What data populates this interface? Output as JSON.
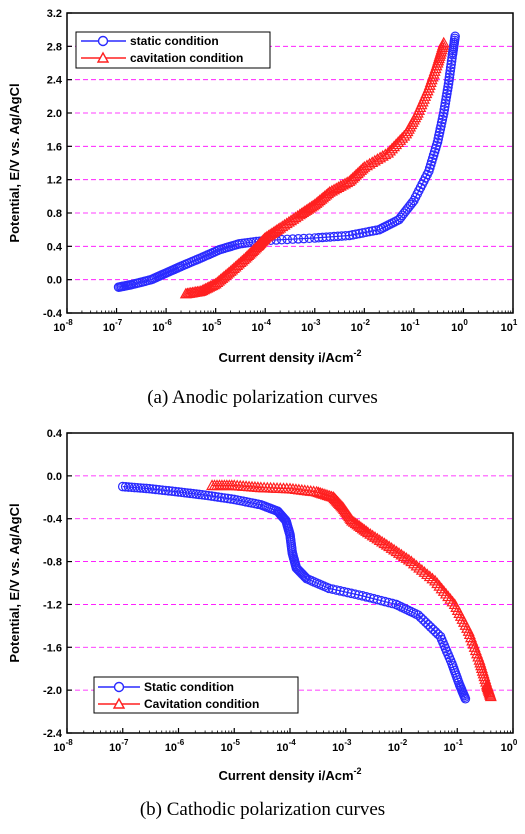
{
  "captions": {
    "a": "(a)  Anodic  polarization  curves",
    "b": "(b)  Cathodic  polarization  curves"
  },
  "colors": {
    "static": "#2a2aff",
    "cavitation": "#ff2020",
    "grid": "#ff00ff"
  },
  "chart_data": [
    {
      "type": "scatter",
      "xscale": "log",
      "xlim": [
        "1e-8",
        "1e1"
      ],
      "ylim": [
        -0.4,
        3.2
      ],
      "xlabel": "Current density i/Acm",
      "xlabel_sup": "-2",
      "ylabel": "Potential, E/V vs. Ag/AgCl",
      "x_ticks": [
        {
          "base": "10",
          "exp": "-8"
        },
        {
          "base": "10",
          "exp": "-7"
        },
        {
          "base": "10",
          "exp": "-6"
        },
        {
          "base": "10",
          "exp": "-5"
        },
        {
          "base": "10",
          "exp": "-4"
        },
        {
          "base": "10",
          "exp": "-3"
        },
        {
          "base": "10",
          "exp": "-2"
        },
        {
          "base": "10",
          "exp": "-1"
        },
        {
          "base": "10",
          "exp": "0"
        },
        {
          "base": "10",
          "exp": "1"
        }
      ],
      "y_ticks": [
        "-0.4",
        "0.0",
        "0.4",
        "0.8",
        "1.2",
        "1.6",
        "2.0",
        "2.4",
        "2.8",
        "3.2"
      ],
      "grid": "horizontal dashed",
      "legend_position": "top-left",
      "series": [
        {
          "name": "static condition",
          "marker": "circle",
          "color": "#2a2aff",
          "points": [
            [
              "1.1e-7",
              -0.09
            ],
            [
              "2e-7",
              -0.06
            ],
            [
              "5e-7",
              0.0
            ],
            [
              "1e-6",
              0.08
            ],
            [
              "2e-6",
              0.16
            ],
            [
              "5e-6",
              0.26
            ],
            [
              "1.2e-5",
              0.36
            ],
            [
              "3e-5",
              0.43
            ],
            [
              "1e-4",
              0.47
            ],
            [
              "1e-3",
              0.5
            ],
            [
              "5e-3",
              0.53
            ],
            [
              "2e-2",
              0.6
            ],
            [
              "5e-2",
              0.72
            ],
            [
              "1e-1",
              0.95
            ],
            [
              "2e-1",
              1.3
            ],
            [
              "3e-1",
              1.65
            ],
            [
              "4e-1",
              2.0
            ],
            [
              "5e-1",
              2.35
            ],
            [
              "6e-1",
              2.7
            ],
            [
              "6.8e-1",
              2.92
            ]
          ]
        },
        {
          "name": "cavitation condition",
          "marker": "triangle",
          "color": "#ff2020",
          "points": [
            [
              "2.5e-6",
              -0.17
            ],
            [
              "5e-6",
              -0.14
            ],
            [
              "1e-5",
              -0.05
            ],
            [
              "2e-5",
              0.1
            ],
            [
              "4e-5",
              0.26
            ],
            [
              "7e-5",
              0.4
            ],
            [
              "1e-4",
              0.5
            ],
            [
              "2e-4",
              0.62
            ],
            [
              "5e-4",
              0.78
            ],
            [
              "1e-3",
              0.9
            ],
            [
              "2e-3",
              1.05
            ],
            [
              "5e-3",
              1.18
            ],
            [
              "1e-2",
              1.35
            ],
            [
              "3e-2",
              1.52
            ],
            [
              "7e-2",
              1.75
            ],
            [
              "1.2e-1",
              2.0
            ],
            [
              "2e-1",
              2.3
            ],
            [
              "3e-1",
              2.6
            ],
            [
              "4e-1",
              2.84
            ]
          ]
        }
      ]
    },
    {
      "type": "scatter",
      "xscale": "log",
      "xlim": [
        "1e-8",
        "1e0"
      ],
      "ylim": [
        -2.4,
        0.4
      ],
      "xlabel": "Current density i/Acm",
      "xlabel_sup": "-2",
      "ylabel": "Potential, E/V vs. Ag/AgCl",
      "x_ticks": [
        {
          "base": "10",
          "exp": "-8"
        },
        {
          "base": "10",
          "exp": "-7"
        },
        {
          "base": "10",
          "exp": "-6"
        },
        {
          "base": "10",
          "exp": "-5"
        },
        {
          "base": "10",
          "exp": "-4"
        },
        {
          "base": "10",
          "exp": "-3"
        },
        {
          "base": "10",
          "exp": "-2"
        },
        {
          "base": "10",
          "exp": "-1"
        },
        {
          "base": "10",
          "exp": "0"
        }
      ],
      "y_ticks": [
        "-2.4",
        "-2.0",
        "-1.6",
        "-1.2",
        "-0.8",
        "-0.4",
        "0.0",
        "0.4"
      ],
      "grid": "horizontal dashed",
      "legend_position": "bottom-left",
      "series": [
        {
          "name": "Static condition",
          "marker": "circle",
          "color": "#2a2aff",
          "points": [
            [
              "1e-7",
              -0.1
            ],
            [
              "3e-7",
              -0.12
            ],
            [
              "1e-6",
              -0.15
            ],
            [
              "3e-6",
              -0.18
            ],
            [
              "1e-5",
              -0.22
            ],
            [
              "3e-5",
              -0.27
            ],
            [
              "6e-5",
              -0.33
            ],
            [
              "8.5e-5",
              -0.42
            ],
            [
              "1e-4",
              -0.55
            ],
            [
              "1.1e-4",
              -0.72
            ],
            [
              "1.3e-4",
              -0.86
            ],
            [
              "2e-4",
              -0.96
            ],
            [
              "5e-4",
              -1.05
            ],
            [
              "2e-3",
              -1.12
            ],
            [
              "8e-3",
              -1.2
            ],
            [
              "2e-2",
              -1.3
            ],
            [
              "5e-2",
              -1.5
            ],
            [
              "8e-2",
              -1.75
            ],
            [
              "1.1e-1",
              -1.95
            ],
            [
              "1.4e-1",
              -2.08
            ]
          ]
        },
        {
          "name": "Cavitation condition",
          "marker": "triangle",
          "color": "#ff2020",
          "points": [
            [
              "4e-6",
              -0.09
            ],
            [
              "1e-5",
              -0.09
            ],
            [
              "3e-5",
              -0.11
            ],
            [
              "1e-4",
              -0.12
            ],
            [
              "3e-4",
              -0.15
            ],
            [
              "6e-4",
              -0.2
            ],
            [
              "9e-4",
              -0.3
            ],
            [
              "1.3e-3",
              -0.42
            ],
            [
              "2.5e-3",
              -0.53
            ],
            [
              "6e-3",
              -0.66
            ],
            [
              "1.5e-2",
              -0.8
            ],
            [
              "4e-2",
              -0.98
            ],
            [
              "9e-2",
              -1.2
            ],
            [
              "1.6e-1",
              -1.45
            ],
            [
              "2.5e-1",
              -1.72
            ],
            [
              "3.4e-1",
              -1.95
            ],
            [
              "4e-1",
              -2.06
            ]
          ]
        }
      ]
    }
  ]
}
